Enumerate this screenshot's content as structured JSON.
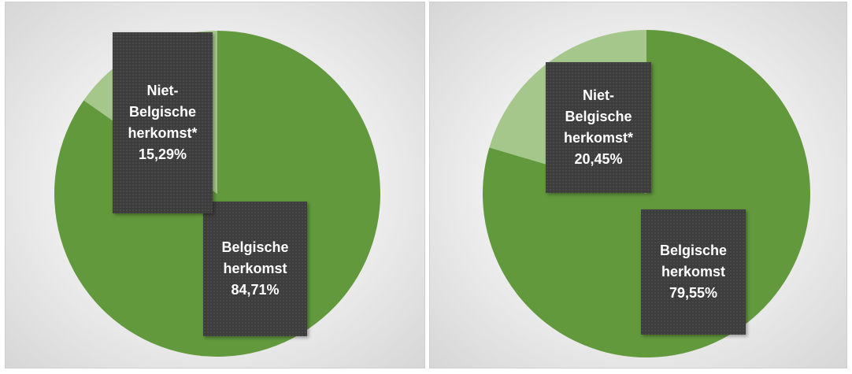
{
  "chart_data": [
    {
      "type": "pie",
      "categories": [
        "Belgische herkomst",
        "Niet-Belgische herkomst*"
      ],
      "values": [
        84.71,
        15.29
      ],
      "value_labels": [
        "84,71%",
        "15,29%"
      ],
      "colors": [
        "#63993d",
        "#a5c78c"
      ]
    },
    {
      "type": "pie",
      "categories": [
        "Belgische herkomst",
        "Niet-Belgische herkomst*"
      ],
      "values": [
        79.55,
        20.45
      ],
      "value_labels": [
        "79,55%",
        "20,45%"
      ],
      "colors": [
        "#63993d",
        "#a5c78c"
      ]
    }
  ]
}
